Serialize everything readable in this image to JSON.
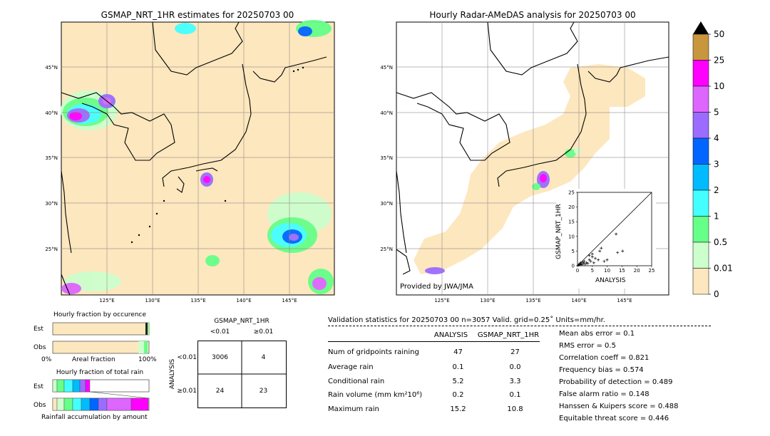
{
  "left_map": {
    "title": "GSMAP_NRT_1HR estimates for 20250703 00",
    "lat_labels": [
      "45°N",
      "40°N",
      "35°N",
      "30°N",
      "25°N"
    ],
    "lon_labels": [
      "125°E",
      "130°E",
      "135°E",
      "140°E",
      "145°E"
    ]
  },
  "right_map": {
    "title": "Hourly Radar-AMeDAS analysis for 20250703 00",
    "lat_labels": [
      "45°N",
      "40°N",
      "35°N",
      "30°N",
      "25°N"
    ],
    "lon_labels": [
      "125°E",
      "130°E",
      "135°E",
      "140°E",
      "145°E"
    ],
    "credit": "Provided by JWA/JMA"
  },
  "colorbar": {
    "labels": [
      "50",
      "25",
      "10",
      "5",
      "4",
      "3",
      "2",
      "1",
      "0.5",
      "0.01",
      "0"
    ],
    "colors": [
      "#c8963c",
      "#ff00ff",
      "#dd66ff",
      "#9b6cff",
      "#0066ff",
      "#00bbff",
      "#44ffff",
      "#66ff88",
      "#ccffcc",
      "#fde7be"
    ]
  },
  "fraction_occurrence": {
    "title": "Hourly fraction by occurence",
    "rows": [
      "Est",
      "Obs"
    ],
    "axis_left": "0%",
    "axis_mid": "Areal fraction",
    "axis_right": "100%"
  },
  "fraction_total": {
    "title": "Hourly fraction of total rain",
    "rows": [
      "Est",
      "Obs"
    ],
    "footer": "Rainfall accumulation by amount"
  },
  "contingency": {
    "title": "GSMAP_NRT_1HR",
    "col_labels": [
      "<0.01",
      "≥0.01"
    ],
    "row_axis": "ANALYSIS",
    "row_labels": [
      "<0.01",
      "≥0.01"
    ],
    "cells": [
      [
        "3006",
        "4"
      ],
      [
        "24",
        "23"
      ]
    ]
  },
  "validation": {
    "header": "Validation statistics for 20250703 00  n=3057 Valid. grid=0.25˚ Units=mm/hr.",
    "col_analysis": "ANALYSIS",
    "col_gsmap": "GSMAP_NRT_1HR",
    "rows": [
      {
        "label": "Num of gridpoints raining",
        "analysis": "47",
        "gsmap": "27"
      },
      {
        "label": "Average rain",
        "analysis": "0.1",
        "gsmap": "0.0"
      },
      {
        "label": "Conditional rain",
        "analysis": "5.2",
        "gsmap": "3.3"
      },
      {
        "label": "Rain volume (mm km²10⁶)",
        "analysis": "0.2",
        "gsmap": "0.1"
      },
      {
        "label": "Maximum rain",
        "analysis": "15.2",
        "gsmap": "10.8"
      }
    ],
    "scores": [
      "Mean abs error =    0.1",
      "RMS error =    0.5",
      "Correlation coeff =  0.821",
      "Frequency bias =  0.574",
      "Probability of detection =  0.489",
      "False alarm ratio =  0.148",
      "Hanssen & Kuipers score =  0.488",
      "Equitable threat score =  0.446"
    ]
  },
  "chart_data": {
    "type": "scatter",
    "title": "",
    "xlabel": "ANALYSIS",
    "ylabel": "GSMAP_NRT_1HR",
    "xlim": [
      0,
      25
    ],
    "ylim": [
      0,
      25
    ],
    "x_ticks": [
      "0",
      "5",
      "10",
      "15",
      "20",
      "25"
    ],
    "y_ticks": [
      "0",
      "5",
      "10",
      "15",
      "20",
      "25"
    ],
    "x": [
      0.3,
      0.5,
      0.8,
      1.0,
      1.2,
      1.5,
      1.8,
      2.0,
      2.3,
      2.6,
      3.0,
      3.5,
      4.0,
      4.5,
      5.0,
      5.5,
      6.0,
      7.0,
      7.5,
      8.0,
      9.0,
      10.0,
      13.5,
      15.2,
      13.0,
      5.0,
      4.0
    ],
    "y": [
      0.2,
      0.5,
      0.3,
      1.0,
      0.6,
      0.4,
      1.2,
      0.8,
      1.5,
      0.5,
      1.0,
      0.8,
      2.0,
      1.5,
      3.0,
      1.0,
      2.5,
      2.0,
      5.0,
      6.0,
      1.5,
      2.0,
      4.5,
      5.0,
      10.8,
      4.0,
      3.5
    ]
  }
}
